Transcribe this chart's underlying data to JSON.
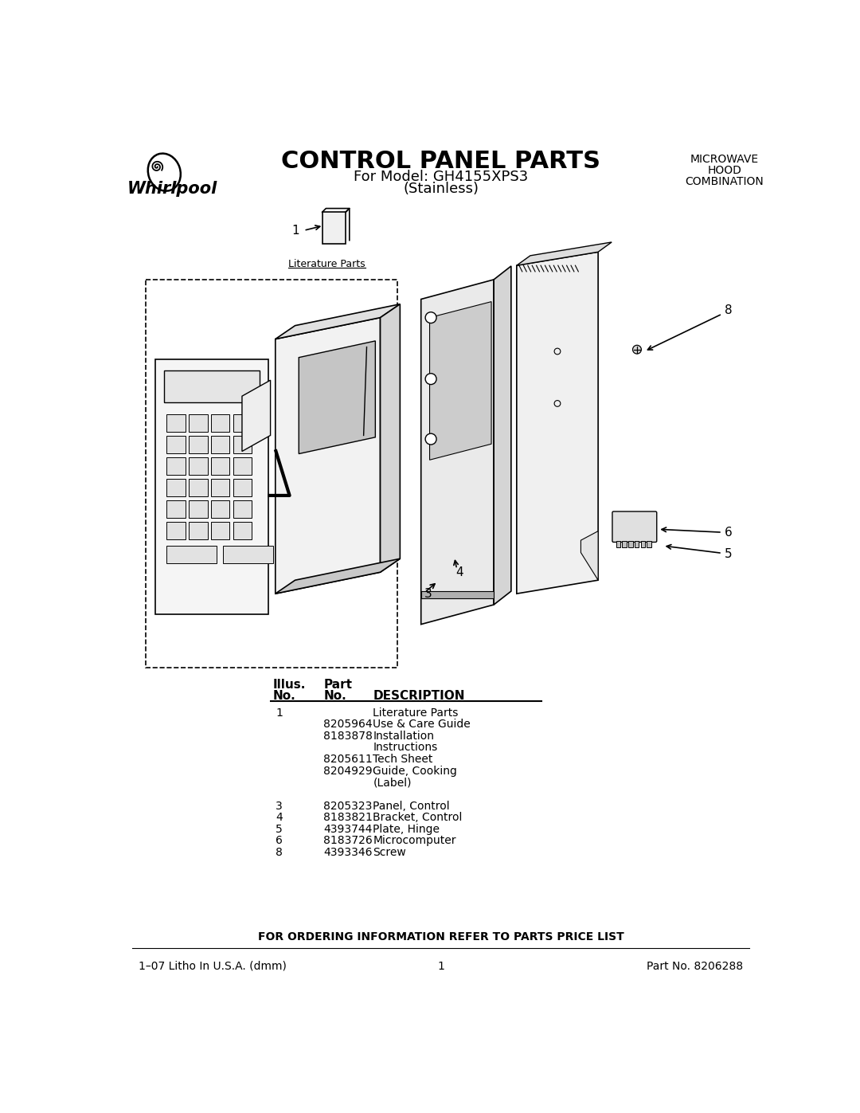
{
  "title": "CONTROL PANEL PARTS",
  "subtitle1": "For Model: GH4155XPS3",
  "subtitle2": "(Stainless)",
  "top_right_text": [
    "MICROWAVE",
    "HOOD",
    "COMBINATION"
  ],
  "footer_center": "FOR ORDERING INFORMATION REFER TO PARTS PRICE LIST",
  "footer_left": "1–07 Litho In U.S.A. (dmm)",
  "footer_middle": "1",
  "footer_right": "Part No. 8206288",
  "table_rows": [
    {
      "illus": "1",
      "part": "",
      "desc": "Literature Parts"
    },
    {
      "illus": "",
      "part": "8205964",
      "desc": "Use & Care Guide"
    },
    {
      "illus": "",
      "part": "8183878",
      "desc": "Installation"
    },
    {
      "illus": "",
      "part": "",
      "desc": "Instructions"
    },
    {
      "illus": "",
      "part": "8205611",
      "desc": "Tech Sheet"
    },
    {
      "illus": "",
      "part": "8204929",
      "desc": "Guide, Cooking"
    },
    {
      "illus": "",
      "part": "",
      "desc": "(Label)"
    },
    {
      "illus": "",
      "part": "",
      "desc": ""
    },
    {
      "illus": "3",
      "part": "8205323",
      "desc": "Panel, Control"
    },
    {
      "illus": "4",
      "part": "8183821",
      "desc": "Bracket, Control"
    },
    {
      "illus": "5",
      "part": "4393744",
      "desc": "Plate, Hinge"
    },
    {
      "illus": "6",
      "part": "8183726",
      "desc": "Microcomputer"
    },
    {
      "illus": "8",
      "part": "4393346",
      "desc": "Screw"
    }
  ],
  "bg_color": "#ffffff",
  "text_color": "#000000"
}
